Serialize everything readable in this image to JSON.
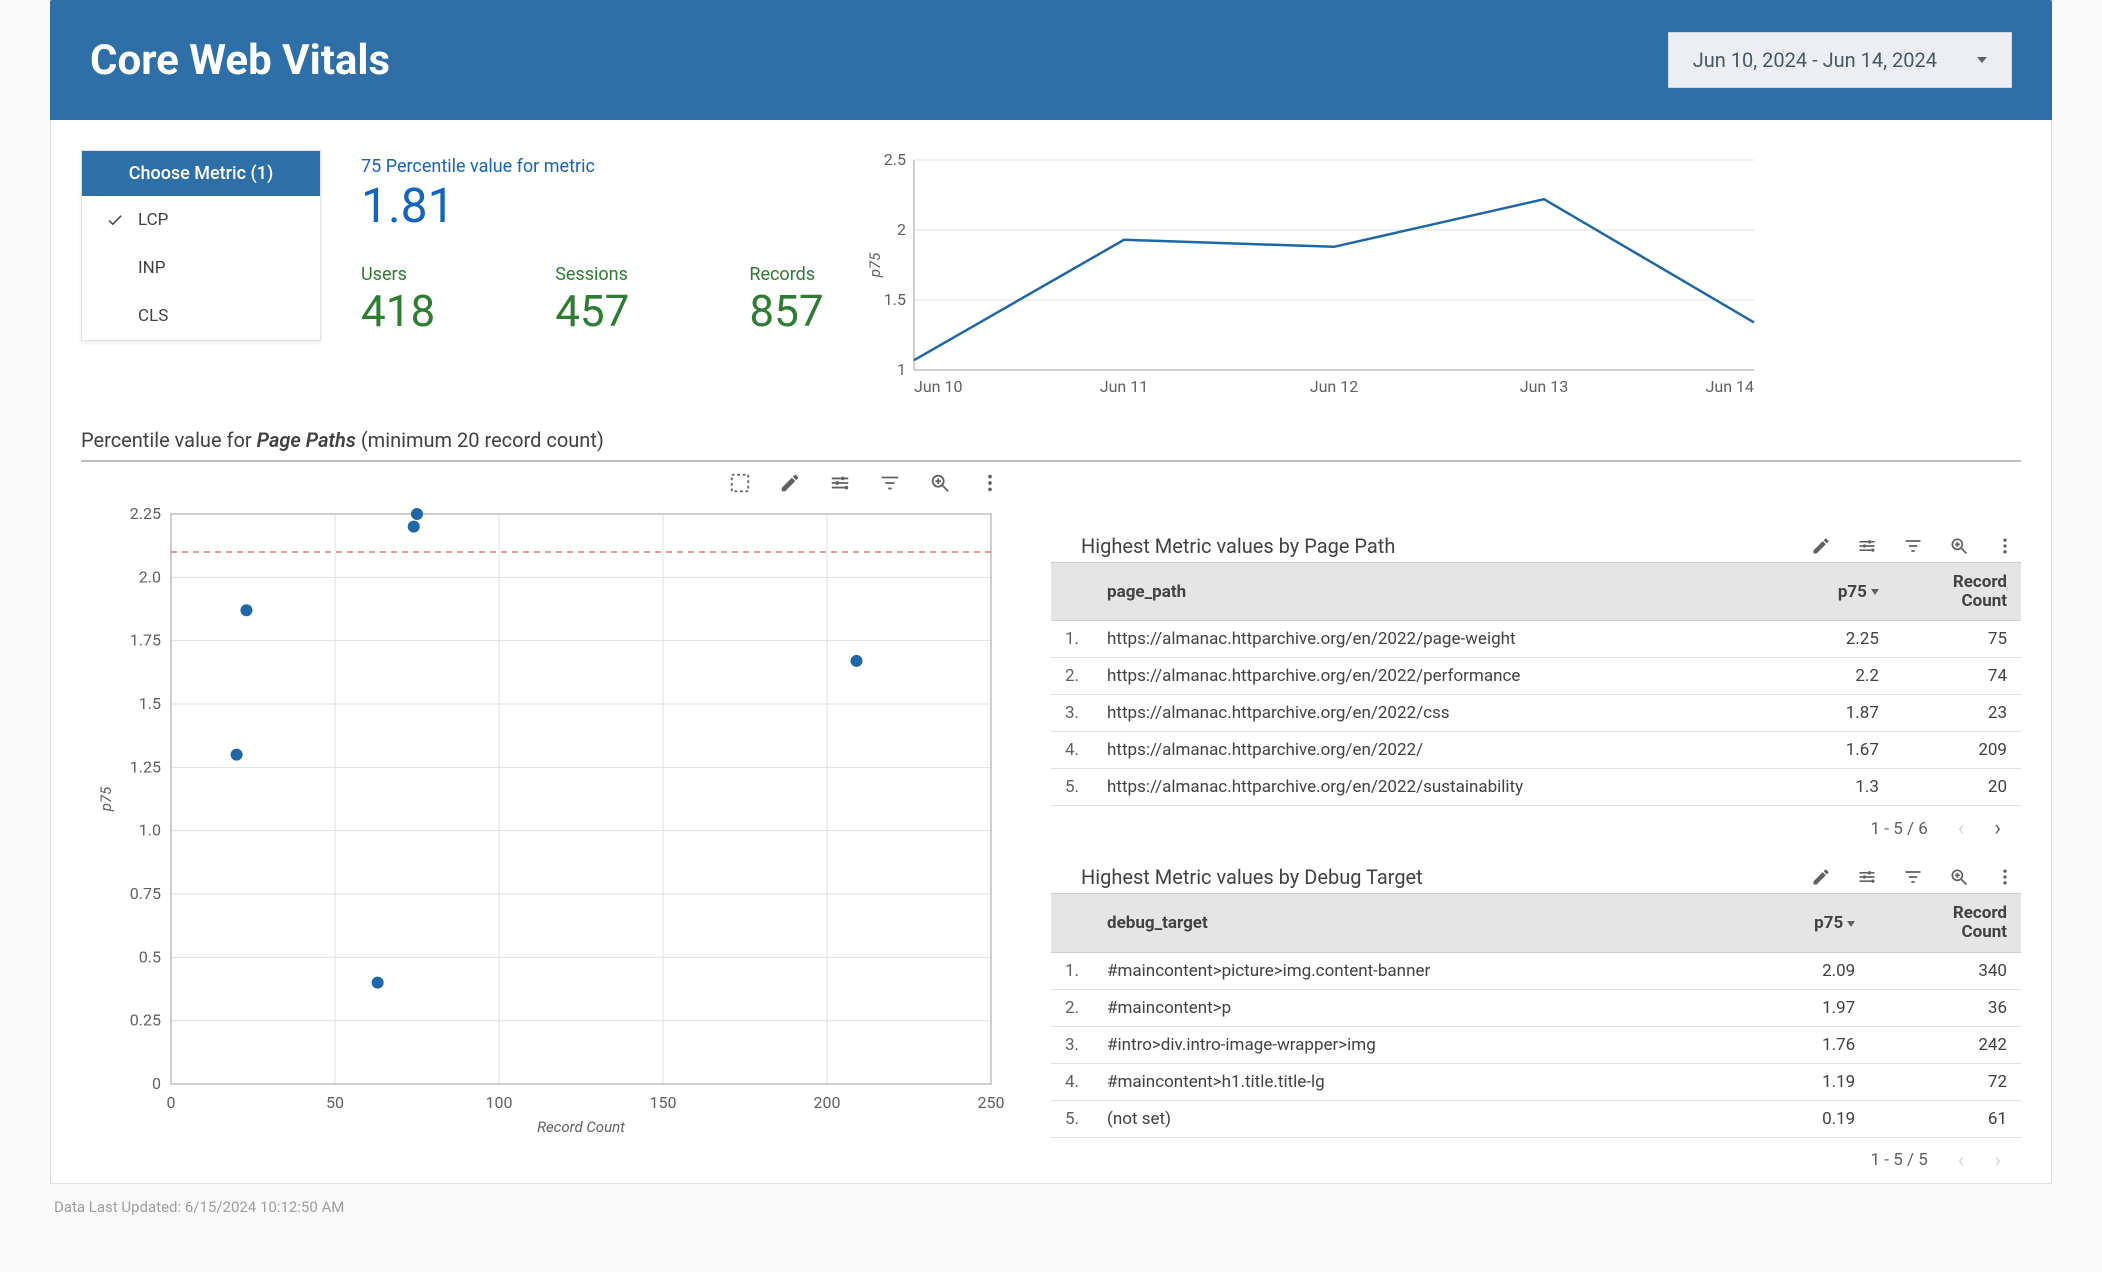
{
  "header": {
    "title": "Core Web Vitals",
    "date_range": "Jun 10, 2024 - Jun 14, 2024"
  },
  "metric_selector": {
    "header": "Choose Metric (1)",
    "options": [
      {
        "label": "LCP",
        "selected": true
      },
      {
        "label": "INP",
        "selected": false
      },
      {
        "label": "CLS",
        "selected": false
      }
    ]
  },
  "kpis": {
    "p75": {
      "label": "75 Percentile value for metric",
      "value": "1.81"
    },
    "users": {
      "label": "Users",
      "value": "418"
    },
    "sessions": {
      "label": "Sessions",
      "value": "457"
    },
    "records": {
      "label": "Records",
      "value": "857"
    }
  },
  "line_chart": {
    "type": "line",
    "ylabel": "p75",
    "ylim": [
      1,
      2.5
    ],
    "ytick_step": 0.5,
    "categories": [
      "Jun 10",
      "Jun 11",
      "Jun 12",
      "Jun 13",
      "Jun 14"
    ],
    "values": [
      1.07,
      1.93,
      1.88,
      2.22,
      1.34
    ],
    "line_color": "#1e68a8",
    "grid_color": "#e0e0e0",
    "background_color": "#ffffff"
  },
  "section_title_prefix": "Percentile value for ",
  "section_title_em": "Page Paths",
  "section_title_suffix": " (minimum 20 record count)",
  "scatter": {
    "type": "scatter",
    "xlabel": "Record Count",
    "ylabel": "p75",
    "xlim": [
      0,
      250
    ],
    "xtick_step": 50,
    "ylim": [
      0,
      2.25
    ],
    "ytick_step": 0.25,
    "reference_line_y": 2.1,
    "reference_line_color": "#e57373",
    "dot_color": "#1e68a8",
    "dot_radius": 6,
    "grid_color": "#e0e0e0",
    "points": [
      {
        "x": 75,
        "y": 2.25
      },
      {
        "x": 74,
        "y": 2.2
      },
      {
        "x": 23,
        "y": 1.87
      },
      {
        "x": 209,
        "y": 1.67
      },
      {
        "x": 20,
        "y": 1.3
      },
      {
        "x": 63,
        "y": 0.4
      }
    ]
  },
  "tables": {
    "page_path": {
      "title": "Highest Metric values by Page Path",
      "col0": "page_path",
      "col1": "p75",
      "col2_line1": "Record",
      "col2_line2": "Count",
      "rows": [
        {
          "idx": "1.",
          "path": "https://almanac.httparchive.org/en/2022/page-weight",
          "p75": "2.25",
          "count": "75"
        },
        {
          "idx": "2.",
          "path": "https://almanac.httparchive.org/en/2022/performance",
          "p75": "2.2",
          "count": "74"
        },
        {
          "idx": "3.",
          "path": "https://almanac.httparchive.org/en/2022/css",
          "p75": "1.87",
          "count": "23"
        },
        {
          "idx": "4.",
          "path": "https://almanac.httparchive.org/en/2022/",
          "p75": "1.67",
          "count": "209"
        },
        {
          "idx": "5.",
          "path": "https://almanac.httparchive.org/en/2022/sustainability",
          "p75": "1.3",
          "count": "20"
        }
      ],
      "pager": "1 - 5 / 6",
      "prev_enabled": false,
      "next_enabled": true
    },
    "debug_target": {
      "title": "Highest Metric values by Debug Target",
      "col0": "debug_target",
      "col1": "p75",
      "col2_line1": "Record",
      "col2_line2": "Count",
      "rows": [
        {
          "idx": "1.",
          "path": "#maincontent>picture>img.content-banner",
          "p75": "2.09",
          "count": "340"
        },
        {
          "idx": "2.",
          "path": "#maincontent>p",
          "p75": "1.97",
          "count": "36"
        },
        {
          "idx": "3.",
          "path": "#intro>div.intro-image-wrapper>img",
          "p75": "1.76",
          "count": "242"
        },
        {
          "idx": "4.",
          "path": "#maincontent>h1.title.title-lg",
          "p75": "1.19",
          "count": "72"
        },
        {
          "idx": "5.",
          "path": "(not set)",
          "p75": "0.19",
          "count": "61"
        }
      ],
      "pager": "1 - 5 / 5",
      "prev_enabled": false,
      "next_enabled": false
    }
  },
  "footer": "Data Last Updated: 6/15/2024 10:12:50 AM"
}
